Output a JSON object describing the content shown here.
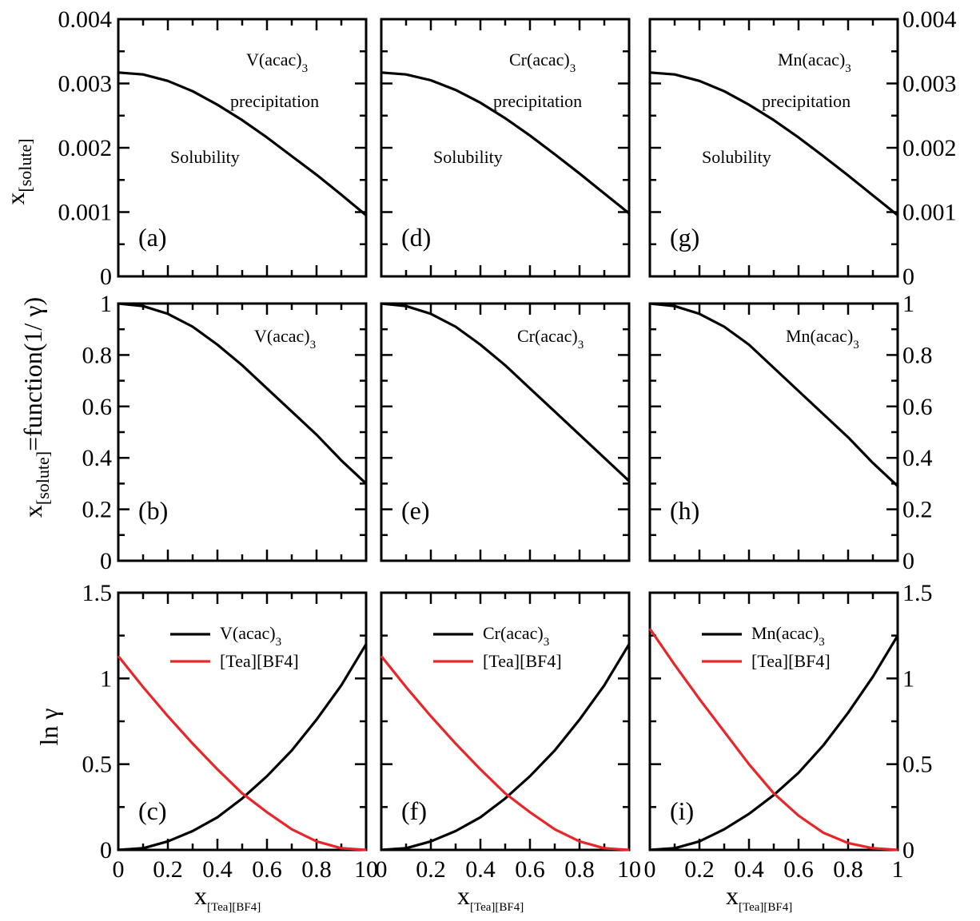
{
  "colors": {
    "series_black": "#000000",
    "series_red": "#e8262a"
  },
  "shared": {
    "x_ticks": [
      "0",
      "0.2",
      "0.4",
      "0.6",
      "0.8"
    ],
    "x_tick_end_left": "10",
    "x_tick_end_middle": "10",
    "x_tick_end_right": "1",
    "x_axis_label_main": "x",
    "x_axis_label_sub": "[Tea][BF4]",
    "row1_ylabel_main": "x",
    "row1_ylabel_sub": "[solute]",
    "row2_ylabel_main": "x",
    "row2_ylabel_sub": "[solute]",
    "row2_ylabel_tail": "=function(1/ γ)",
    "row3_ylabel": "ln γ",
    "row1_yticks": [
      "0",
      "0.001",
      "0.002",
      "0.003",
      "0.004"
    ],
    "row2_yticks": [
      "0",
      "0.2",
      "0.4",
      "0.6",
      "0.8",
      "1"
    ],
    "row3_yticks": [
      "0",
      "0.5",
      "1",
      "1.5"
    ]
  },
  "chart_data": [
    {
      "type": "line",
      "panel": "(a)",
      "compound_main": "V(acac)",
      "compound_sub": "3",
      "region_upper": "precipitation",
      "region_lower": "Solubility",
      "xlim": [
        0,
        1
      ],
      "ylim": [
        0,
        0.004
      ],
      "series": [
        {
          "values_x": [
            0,
            0.1,
            0.2,
            0.3,
            0.4,
            0.5,
            0.6,
            0.7,
            0.8,
            0.9,
            1.0
          ],
          "values_y": [
            0.00317,
            0.00314,
            0.00304,
            0.00288,
            0.00267,
            0.00243,
            0.00216,
            0.00187,
            0.00158,
            0.00127,
            0.00095
          ]
        }
      ]
    },
    {
      "type": "line",
      "panel": "(b)",
      "compound_main": "V(acac)",
      "compound_sub": "3",
      "xlim": [
        0,
        1
      ],
      "ylim": [
        0,
        1
      ],
      "series": [
        {
          "values_x": [
            0,
            0.1,
            0.2,
            0.3,
            0.4,
            0.5,
            0.6,
            0.7,
            0.8,
            0.9,
            1.0
          ],
          "values_y": [
            1.0,
            0.99,
            0.96,
            0.91,
            0.84,
            0.76,
            0.67,
            0.58,
            0.49,
            0.39,
            0.3
          ]
        }
      ]
    },
    {
      "type": "line",
      "panel": "(c)",
      "xlim": [
        0,
        1
      ],
      "ylim": [
        0,
        1.5
      ],
      "series": [
        {
          "name_main": "V(acac)",
          "name_sub": "3",
          "color": "#000000",
          "values_x": [
            0,
            0.1,
            0.2,
            0.3,
            0.4,
            0.5,
            0.6,
            0.7,
            0.8,
            0.9,
            1.0
          ],
          "values_y": [
            0,
            0.01,
            0.05,
            0.11,
            0.19,
            0.3,
            0.43,
            0.58,
            0.76,
            0.96,
            1.2
          ]
        },
        {
          "name": "[Tea][BF4]",
          "color": "#e8262a",
          "values_x": [
            0,
            0.1,
            0.2,
            0.3,
            0.4,
            0.5,
            0.6,
            0.7,
            0.8,
            0.9,
            1.0
          ],
          "values_y": [
            1.13,
            0.95,
            0.78,
            0.62,
            0.47,
            0.33,
            0.22,
            0.12,
            0.05,
            0.01,
            0
          ]
        }
      ]
    },
    {
      "type": "line",
      "panel": "(d)",
      "compound_main": "Cr(acac)",
      "compound_sub": "3",
      "region_upper": "precipitation",
      "region_lower": "Solubility",
      "xlim": [
        0,
        1
      ],
      "ylim": [
        0,
        0.004
      ],
      "series": [
        {
          "values_x": [
            0,
            0.1,
            0.2,
            0.3,
            0.4,
            0.5,
            0.6,
            0.7,
            0.8,
            0.9,
            1.0
          ],
          "values_y": [
            0.00317,
            0.00314,
            0.00305,
            0.0029,
            0.0027,
            0.00246,
            0.00219,
            0.0019,
            0.0016,
            0.00129,
            0.00098
          ]
        }
      ]
    },
    {
      "type": "line",
      "panel": "(e)",
      "compound_main": "Cr(acac)",
      "compound_sub": "3",
      "xlim": [
        0,
        1
      ],
      "ylim": [
        0,
        1
      ],
      "series": [
        {
          "values_x": [
            0,
            0.1,
            0.2,
            0.3,
            0.4,
            0.5,
            0.6,
            0.7,
            0.8,
            0.9,
            1.0
          ],
          "values_y": [
            1.0,
            0.99,
            0.96,
            0.91,
            0.84,
            0.76,
            0.67,
            0.58,
            0.49,
            0.4,
            0.31
          ]
        }
      ]
    },
    {
      "type": "line",
      "panel": "(f)",
      "xlim": [
        0,
        1
      ],
      "ylim": [
        0,
        1.5
      ],
      "series": [
        {
          "name_main": "Cr(acac)",
          "name_sub": "3",
          "color": "#000000",
          "values_x": [
            0,
            0.1,
            0.2,
            0.3,
            0.4,
            0.5,
            0.6,
            0.7,
            0.8,
            0.9,
            1.0
          ],
          "values_y": [
            0,
            0.01,
            0.05,
            0.11,
            0.19,
            0.3,
            0.43,
            0.58,
            0.76,
            0.96,
            1.2
          ]
        },
        {
          "name": "[Tea][BF4]",
          "color": "#e8262a",
          "values_x": [
            0,
            0.1,
            0.2,
            0.3,
            0.4,
            0.5,
            0.6,
            0.7,
            0.8,
            0.9,
            1.0
          ],
          "values_y": [
            1.13,
            0.95,
            0.78,
            0.62,
            0.47,
            0.33,
            0.22,
            0.12,
            0.05,
            0.01,
            0
          ]
        }
      ]
    },
    {
      "type": "line",
      "panel": "(g)",
      "compound_main": "Mn(acac)",
      "compound_sub": "3",
      "region_upper": "precipitation",
      "region_lower": "Solubility",
      "xlim": [
        0,
        1
      ],
      "ylim": [
        0,
        0.004
      ],
      "series": [
        {
          "values_x": [
            0,
            0.1,
            0.2,
            0.3,
            0.4,
            0.5,
            0.6,
            0.7,
            0.8,
            0.9,
            1.0
          ],
          "values_y": [
            0.00317,
            0.00314,
            0.00304,
            0.00288,
            0.00267,
            0.00243,
            0.00216,
            0.00187,
            0.00157,
            0.00126,
            0.00095
          ]
        }
      ]
    },
    {
      "type": "line",
      "panel": "(h)",
      "compound_main": "Mn(acac)",
      "compound_sub": "3",
      "xlim": [
        0,
        1
      ],
      "ylim": [
        0,
        1
      ],
      "series": [
        {
          "values_x": [
            0,
            0.1,
            0.2,
            0.3,
            0.4,
            0.5,
            0.6,
            0.7,
            0.8,
            0.9,
            1.0
          ],
          "values_y": [
            1.0,
            0.99,
            0.96,
            0.91,
            0.84,
            0.75,
            0.66,
            0.57,
            0.48,
            0.38,
            0.29
          ]
        }
      ]
    },
    {
      "type": "line",
      "panel": "(i)",
      "xlim": [
        0,
        1
      ],
      "ylim": [
        0,
        1.5
      ],
      "series": [
        {
          "name_main": "Mn(acac)",
          "name_sub": "3",
          "color": "#000000",
          "values_x": [
            0,
            0.1,
            0.2,
            0.3,
            0.4,
            0.5,
            0.6,
            0.7,
            0.8,
            0.9,
            1.0
          ],
          "values_y": [
            0,
            0.01,
            0.05,
            0.12,
            0.21,
            0.32,
            0.45,
            0.61,
            0.8,
            1.01,
            1.25
          ]
        },
        {
          "name": "[Tea][BF4]",
          "color": "#e8262a",
          "values_x": [
            0,
            0.1,
            0.2,
            0.3,
            0.4,
            0.5,
            0.6,
            0.7,
            0.8,
            0.9,
            1.0
          ],
          "values_y": [
            1.29,
            1.08,
            0.88,
            0.69,
            0.5,
            0.33,
            0.2,
            0.1,
            0.04,
            0.01,
            0
          ]
        }
      ]
    }
  ]
}
